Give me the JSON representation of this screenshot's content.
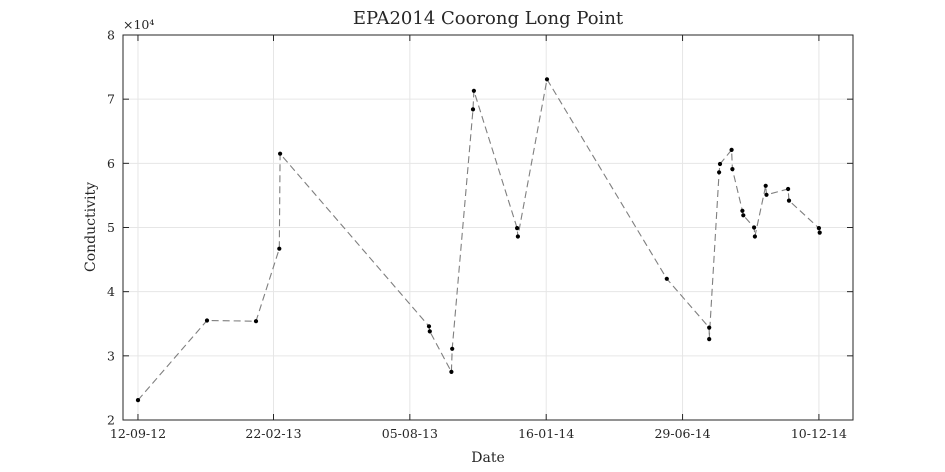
{
  "chart_data": {
    "type": "line",
    "title": "EPA2014 Coorong Long Point",
    "xlabel": "Date",
    "ylabel": "Conductivity",
    "y_multiplier_label": "×10⁴",
    "y_multiplier": 10000,
    "xlim": [
      "2012-08-25",
      "2015-01-20"
    ],
    "ylim": [
      20000,
      80000
    ],
    "x_ticks": [
      {
        "date": "2012-09-12",
        "label": "12-09-12"
      },
      {
        "date": "2013-02-22",
        "label": "22-02-13"
      },
      {
        "date": "2013-08-05",
        "label": "05-08-13"
      },
      {
        "date": "2014-01-16",
        "label": "16-01-14"
      },
      {
        "date": "2014-06-29",
        "label": "29-06-14"
      },
      {
        "date": "2014-12-10",
        "label": "10-12-14"
      }
    ],
    "y_ticks": [
      {
        "value": 20000,
        "label": "2"
      },
      {
        "value": 30000,
        "label": "3"
      },
      {
        "value": 40000,
        "label": "4"
      },
      {
        "value": 50000,
        "label": "5"
      },
      {
        "value": 60000,
        "label": "6"
      },
      {
        "value": 70000,
        "label": "7"
      },
      {
        "value": 80000,
        "label": "8"
      }
    ],
    "grid": true,
    "line_style": "dashed",
    "line_color": "#7f7f7f",
    "marker_color": "#000000",
    "series": [
      {
        "points": [
          {
            "x": "2012-09-12",
            "y": 23100
          },
          {
            "x": "2012-12-04",
            "y": 35500
          },
          {
            "x": "2013-02-01",
            "y": 35400
          },
          {
            "x": "2013-03-01",
            "y": 46700
          },
          {
            "x": "2013-03-02",
            "y": 61500
          },
          {
            "x": "2013-08-28",
            "y": 34600
          },
          {
            "x": "2013-08-29",
            "y": 33800
          },
          {
            "x": "2013-09-24",
            "y": 27500
          },
          {
            "x": "2013-09-25",
            "y": 31100
          },
          {
            "x": "2013-10-20",
            "y": 68400
          },
          {
            "x": "2013-10-21",
            "y": 71300
          },
          {
            "x": "2013-12-12",
            "y": 49900
          },
          {
            "x": "2013-12-13",
            "y": 48600
          },
          {
            "x": "2014-01-17",
            "y": 73100
          },
          {
            "x": "2014-06-10",
            "y": 42000
          },
          {
            "x": "2014-07-31",
            "y": 34400
          },
          {
            "x": "2014-07-31",
            "y": 32600
          },
          {
            "x": "2014-08-12",
            "y": 58600
          },
          {
            "x": "2014-08-13",
            "y": 59900
          },
          {
            "x": "2014-08-27",
            "y": 62100
          },
          {
            "x": "2014-08-28",
            "y": 59100
          },
          {
            "x": "2014-09-09",
            "y": 52600
          },
          {
            "x": "2014-09-10",
            "y": 51900
          },
          {
            "x": "2014-09-23",
            "y": 50000
          },
          {
            "x": "2014-09-24",
            "y": 48600
          },
          {
            "x": "2014-10-07",
            "y": 56500
          },
          {
            "x": "2014-10-08",
            "y": 55100
          },
          {
            "x": "2014-11-03",
            "y": 56000
          },
          {
            "x": "2014-11-04",
            "y": 54200
          },
          {
            "x": "2014-12-10",
            "y": 49900
          },
          {
            "x": "2014-12-11",
            "y": 49200
          }
        ]
      }
    ]
  }
}
